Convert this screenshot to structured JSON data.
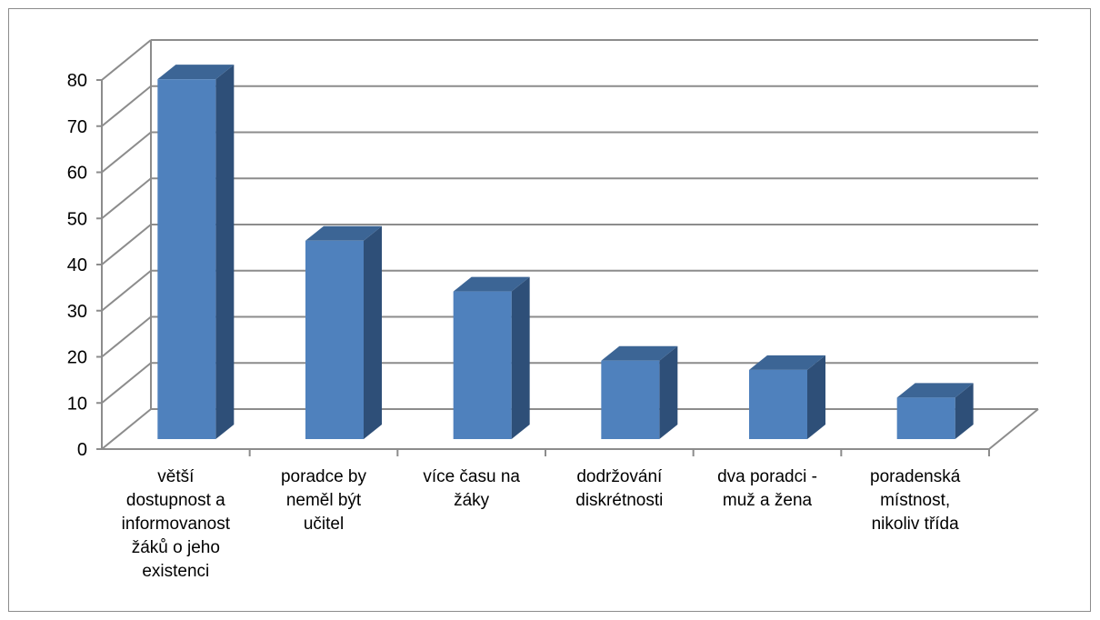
{
  "chart_data": {
    "type": "bar",
    "title": "",
    "xlabel": "",
    "ylabel": "",
    "ylim": [
      0,
      80
    ],
    "yticks": [
      "0",
      "10",
      "20",
      "30",
      "40",
      "50",
      "60",
      "70",
      "80"
    ],
    "grid": true,
    "legend": "none",
    "style": "3d-column",
    "categories": [
      "větší dostupnost a informovanost žáků o jeho existenci",
      "poradce by neměl být učitel",
      "více času na žáky",
      "dodržování diskrétnosti",
      "dva poradci - muž a žena",
      "poradenská místnost, nikoliv třída"
    ],
    "category_lines": [
      "větší\ndostupnost a\ninformovanost\nžáků o jeho\nexistenci",
      "poradce by\nneměl být\nučitel",
      "více času na\nžáky",
      "dodržování\ndiskrétnosti",
      "dva poradci -\nmuž a žena",
      "poradenská\nmístnost,\nnikoliv třída"
    ],
    "values": [
      78,
      43,
      32,
      17,
      15,
      9
    ],
    "colors": {
      "bar_front": "#4f81bd",
      "bar_side": "#2e4f78",
      "bar_top": "#3c6595",
      "grid": "#8c8c8c",
      "axis": "#8c8c8c",
      "text": "#000000"
    }
  }
}
